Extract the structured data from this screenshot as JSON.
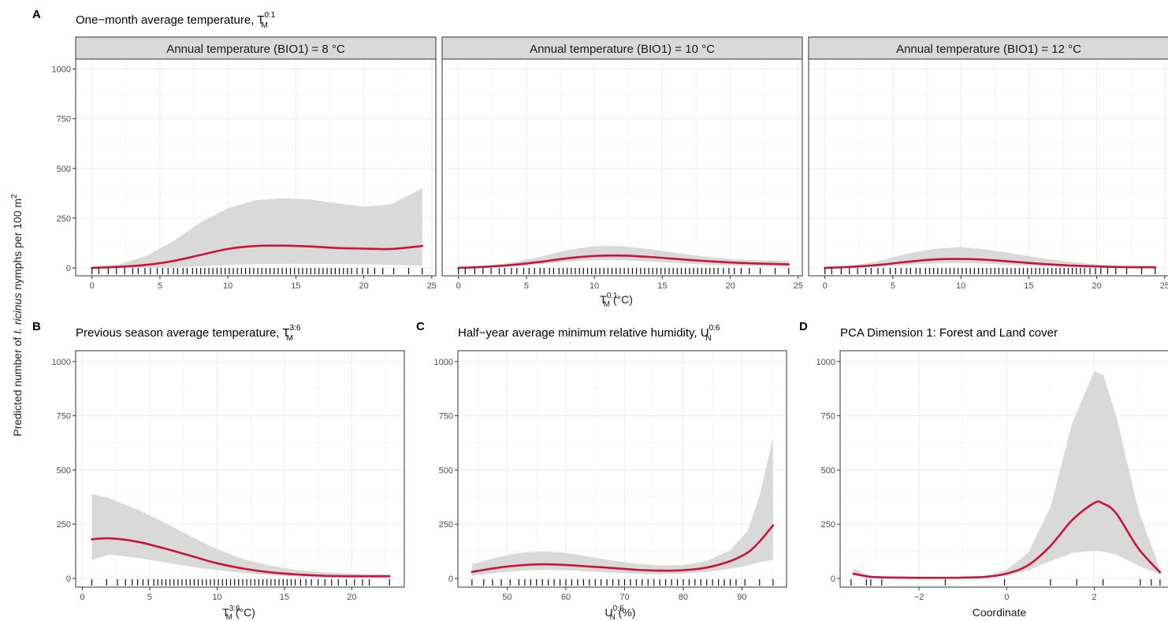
{
  "figure": {
    "ylabel_prefix": "Predicted number of ",
    "ylabel_species": "I. ricinus",
    "ylabel_suffix": " nymphs per 100  m",
    "ylabel_sup": "2"
  },
  "colors": {
    "line": "#c8143c",
    "ribbon": "#d9d9d9",
    "strip": "#d9d9d9",
    "grid": "#ebebeb",
    "panel_border": "#333333"
  },
  "panels": {
    "A": {
      "letter": "A",
      "title": "One−month average temperature, T",
      "title_sup": "0:1",
      "title_sub": "M",
      "xlabel": "T",
      "xlabel_sup": "0:1",
      "xlabel_sub": "M",
      "xlabel_unit": " (°C)",
      "facets": [
        {
          "strip": "Annual temperature (BIO1) = 8 °C"
        },
        {
          "strip": "Annual temperature (BIO1) = 10 °C"
        },
        {
          "strip": "Annual temperature (BIO1) = 12 °C"
        }
      ]
    },
    "B": {
      "letter": "B",
      "title": "Previous season average temperature, T",
      "title_sup": "3:6",
      "title_sub": "M",
      "xlabel": "T",
      "xlabel_sup": "3:6",
      "xlabel_sub": "M",
      "xlabel_unit": " (°C)"
    },
    "C": {
      "letter": "C",
      "title": "Half−year average minimum relative humidity, U",
      "title_sup": "0:6",
      "title_sub": "N",
      "xlabel": "U",
      "xlabel_sup": "0:6",
      "xlabel_sub": "N",
      "xlabel_unit": " (%)"
    },
    "D": {
      "letter": "D",
      "title": "PCA Dimension 1: Forest and Land cover",
      "xlabel": "Coordinate"
    }
  },
  "chart_data": [
    {
      "type": "line",
      "panel": "A1",
      "facet": "Annual temperature (BIO1) = 8 °C",
      "xlim": [
        -1.2,
        25.3
      ],
      "ylim": [
        -40,
        1050
      ],
      "xticks": [
        0,
        5,
        10,
        15,
        20,
        25
      ],
      "yticks": [
        0,
        250,
        500,
        750,
        1000
      ],
      "series": [
        {
          "x": [
            0,
            2,
            4,
            6,
            8,
            10,
            12,
            14,
            16,
            18,
            20,
            22,
            24.3
          ],
          "y": [
            0,
            5,
            15,
            35,
            65,
            95,
            110,
            112,
            108,
            100,
            97,
            95,
            110
          ],
          "lower": [
            0,
            0,
            1,
            3,
            8,
            14,
            18,
            20,
            20,
            19,
            18,
            15,
            10
          ],
          "upper": [
            5,
            18,
            60,
            135,
            230,
            300,
            340,
            350,
            345,
            325,
            308,
            320,
            400
          ]
        }
      ],
      "rug": [
        0.0,
        0.5,
        1.2,
        1.8,
        2.4,
        3.0,
        3.4,
        3.9,
        4.3,
        4.8,
        5.2,
        5.6,
        6.0,
        6.3,
        6.7,
        7.0,
        7.4,
        7.7,
        8.0,
        8.3,
        8.6,
        8.9,
        9.2,
        9.5,
        9.8,
        10.1,
        10.4,
        10.7,
        11.0,
        11.3,
        11.6,
        11.9,
        12.2,
        12.5,
        12.8,
        13.1,
        13.4,
        13.7,
        14.0,
        14.3,
        14.6,
        14.9,
        15.2,
        15.5,
        15.8,
        16.1,
        16.4,
        16.7,
        17.0,
        17.3,
        17.6,
        17.9,
        18.2,
        18.5,
        18.8,
        19.1,
        19.5,
        19.9,
        20.3,
        20.8,
        21.4,
        22.2,
        23.3,
        24.3
      ]
    },
    {
      "type": "line",
      "panel": "A2",
      "facet": "Annual temperature (BIO1) = 10 °C",
      "xlim": [
        -1.2,
        25.3
      ],
      "ylim": [
        -40,
        1050
      ],
      "xticks": [
        0,
        5,
        10,
        15,
        20,
        25
      ],
      "yticks": [
        0,
        250,
        500,
        750,
        1000
      ],
      "series": [
        {
          "x": [
            0,
            2,
            4,
            6,
            8,
            10,
            12,
            14,
            16,
            18,
            20,
            22,
            24.3
          ],
          "y": [
            0,
            5,
            15,
            30,
            48,
            60,
            62,
            55,
            45,
            35,
            27,
            22,
            18
          ],
          "lower": [
            0,
            2,
            8,
            18,
            30,
            38,
            38,
            32,
            24,
            17,
            12,
            9,
            6
          ],
          "upper": [
            3,
            10,
            28,
            55,
            90,
            110,
            110,
            95,
            75,
            58,
            45,
            38,
            36
          ]
        }
      ],
      "rug": [
        0.0,
        0.5,
        1.2,
        1.8,
        2.4,
        3.0,
        3.4,
        3.9,
        4.3,
        4.8,
        5.2,
        5.6,
        6.0,
        6.3,
        6.7,
        7.0,
        7.4,
        7.7,
        8.0,
        8.3,
        8.6,
        8.9,
        9.2,
        9.5,
        9.8,
        10.1,
        10.4,
        10.7,
        11.0,
        11.3,
        11.6,
        11.9,
        12.2,
        12.5,
        12.8,
        13.1,
        13.4,
        13.7,
        14.0,
        14.3,
        14.6,
        14.9,
        15.2,
        15.5,
        15.8,
        16.1,
        16.4,
        16.7,
        17.0,
        17.3,
        17.6,
        17.9,
        18.2,
        18.5,
        18.8,
        19.1,
        19.5,
        19.9,
        20.3,
        20.8,
        21.4,
        22.2,
        23.3,
        24.3
      ]
    },
    {
      "type": "line",
      "panel": "A3",
      "facet": "Annual temperature (BIO1) = 12 °C",
      "xlim": [
        -1.2,
        25.3
      ],
      "ylim": [
        -40,
        1050
      ],
      "xticks": [
        0,
        5,
        10,
        15,
        20,
        25
      ],
      "yticks": [
        0,
        250,
        500,
        750,
        1000
      ],
      "series": [
        {
          "x": [
            0,
            2,
            4,
            6,
            8,
            10,
            12,
            14,
            16,
            18,
            20,
            22,
            24.3
          ],
          "y": [
            0,
            5,
            15,
            30,
            42,
            45,
            40,
            30,
            20,
            12,
            7,
            4,
            3
          ],
          "lower": [
            0,
            2,
            7,
            15,
            22,
            24,
            20,
            14,
            8,
            4,
            2,
            1,
            0
          ],
          "upper": [
            2,
            12,
            35,
            70,
            95,
            105,
            92,
            70,
            48,
            30,
            18,
            10,
            8
          ]
        }
      ],
      "rug": [
        0.0,
        0.5,
        1.2,
        1.8,
        2.4,
        3.0,
        3.4,
        3.9,
        4.3,
        4.8,
        5.2,
        5.6,
        6.0,
        6.3,
        6.7,
        7.0,
        7.4,
        7.7,
        8.0,
        8.3,
        8.6,
        8.9,
        9.2,
        9.5,
        9.8,
        10.1,
        10.4,
        10.7,
        11.0,
        11.3,
        11.6,
        11.9,
        12.2,
        12.5,
        12.8,
        13.1,
        13.4,
        13.7,
        14.0,
        14.3,
        14.6,
        14.9,
        15.2,
        15.5,
        15.8,
        16.1,
        16.4,
        16.7,
        17.0,
        17.3,
        17.6,
        17.9,
        18.2,
        18.5,
        18.8,
        19.1,
        19.5,
        19.9,
        20.3,
        20.8,
        21.4,
        22.2,
        23.3,
        24.3
      ]
    },
    {
      "type": "line",
      "panel": "B",
      "xlim": [
        -0.5,
        23.9
      ],
      "ylim": [
        -40,
        1050
      ],
      "xticks": [
        0,
        5,
        10,
        15,
        20
      ],
      "yticks": [
        0,
        250,
        500,
        750,
        1000
      ],
      "series": [
        {
          "x": [
            0.7,
            2,
            4,
            6,
            8,
            10,
            12,
            14,
            16,
            18,
            20,
            22.8
          ],
          "y": [
            180,
            185,
            170,
            140,
            105,
            70,
            45,
            28,
            18,
            12,
            10,
            10
          ],
          "lower": [
            85,
            110,
            95,
            75,
            55,
            38,
            25,
            14,
            8,
            5,
            3,
            2
          ],
          "upper": [
            390,
            370,
            320,
            260,
            195,
            135,
            88,
            58,
            38,
            28,
            22,
            18
          ]
        }
      ],
      "rug": [
        0.7,
        1.8,
        2.6,
        3.2,
        3.7,
        4.1,
        4.5,
        4.9,
        5.3,
        5.6,
        5.9,
        6.2,
        6.5,
        6.8,
        7.1,
        7.4,
        7.7,
        8.0,
        8.3,
        8.6,
        8.9,
        9.2,
        9.5,
        9.8,
        10.1,
        10.4,
        10.7,
        11.0,
        11.3,
        11.6,
        11.9,
        12.2,
        12.5,
        12.8,
        13.1,
        13.4,
        13.7,
        14.0,
        14.3,
        14.6,
        14.9,
        15.2,
        15.5,
        15.8,
        16.2,
        16.6,
        17.0,
        17.5,
        18.0,
        18.5,
        19.0,
        19.6,
        20.2,
        20.8,
        21.3,
        22.8
      ]
    },
    {
      "type": "line",
      "panel": "C",
      "xlim": [
        41.6,
        97.6
      ],
      "ylim": [
        -40,
        1050
      ],
      "xticks": [
        50,
        60,
        70,
        80,
        90
      ],
      "yticks": [
        0,
        250,
        500,
        750,
        1000
      ],
      "series": [
        {
          "x": [
            44,
            48,
            52,
            56,
            60,
            64,
            68,
            72,
            76,
            80,
            84,
            88,
            91,
            93,
            95.3
          ],
          "y": [
            30,
            48,
            60,
            65,
            62,
            55,
            48,
            40,
            36,
            38,
            50,
            80,
            120,
            170,
            245
          ],
          "lower": [
            12,
            25,
            35,
            40,
            38,
            32,
            26,
            22,
            20,
            22,
            30,
            45,
            60,
            75,
            85
          ],
          "upper": [
            65,
            95,
            118,
            125,
            118,
            100,
            82,
            68,
            60,
            62,
            80,
            130,
            220,
            380,
            650
          ]
        }
      ],
      "rug": [
        44,
        46,
        47.5,
        49,
        50.5,
        52,
        53,
        54,
        55,
        56,
        57,
        58,
        59,
        60,
        61,
        62,
        63,
        64,
        65,
        66,
        67,
        68,
        69,
        70,
        71,
        72,
        73,
        74,
        75,
        76,
        77,
        78,
        79,
        80,
        81,
        82,
        83,
        84,
        85,
        86,
        87,
        88,
        89,
        90.5,
        93,
        95.3
      ]
    },
    {
      "type": "line",
      "panel": "D",
      "xlim": [
        -3.8,
        3.7
      ],
      "ylim": [
        -40,
        1050
      ],
      "xticks": [
        -2,
        0,
        2
      ],
      "yticks": [
        0,
        250,
        500,
        750,
        1000
      ],
      "series": [
        {
          "x": [
            -3.5,
            -3.2,
            -3,
            -2.5,
            -2,
            -1.5,
            -1,
            -0.5,
            0,
            0.5,
            1,
            1.5,
            2,
            2.2,
            2.5,
            3,
            3.5
          ],
          "y": [
            22,
            10,
            6,
            4,
            3,
            3,
            4,
            7,
            22,
            62,
            150,
            270,
            348,
            345,
            300,
            140,
            28
          ],
          "lower": [
            15,
            6,
            3,
            2,
            2,
            2,
            3,
            5,
            14,
            38,
            80,
            118,
            128,
            125,
            110,
            60,
            18
          ],
          "upper": [
            45,
            18,
            10,
            7,
            6,
            6,
            8,
            12,
            40,
            120,
            330,
            720,
            955,
            940,
            750,
            320,
            40
          ]
        }
      ],
      "rug": [
        -3.55,
        -3.2,
        -3.1,
        -2.85,
        -1.4,
        -0.05,
        1.0,
        1.6,
        2.2,
        3.05,
        3.3,
        3.5
      ]
    }
  ]
}
